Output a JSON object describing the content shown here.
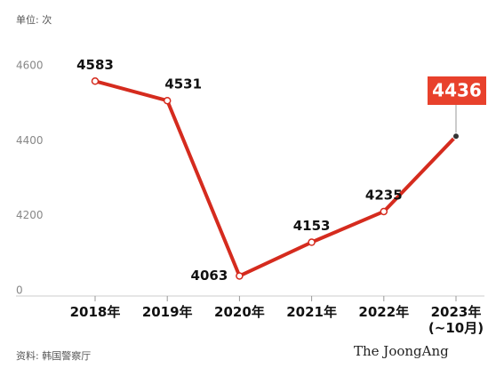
{
  "chart_data": {
    "type": "line",
    "subtitle": "单位: 次",
    "source": "资料: 韩国警察厅",
    "credit": "The JoongAng",
    "categories": [
      "2018年",
      "2019年",
      "2020年",
      "2021年",
      "2022年",
      "2023年\n(~10月)"
    ],
    "series": [
      {
        "name": "次",
        "color": "#d52b1e",
        "values": [
          4583,
          4531,
          4063,
          4153,
          4235,
          4436
        ]
      }
    ],
    "ylim": [
      4000,
      4700
    ],
    "yticks": [
      {
        "value": 4000,
        "label": "0"
      },
      4200,
      4400,
      4600
    ],
    "grid": false
  }
}
